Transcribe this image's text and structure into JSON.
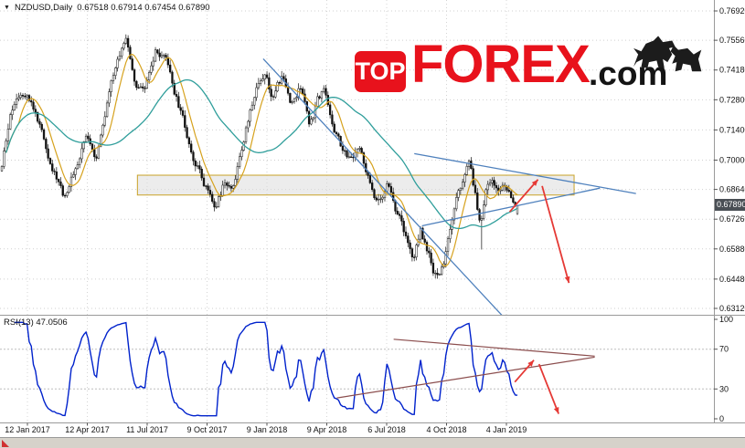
{
  "header": {
    "symbol_title": "NZDUSD,Daily",
    "ohlc_text": "0.67518 0.67914 0.67454 0.67890"
  },
  "logo": {
    "box_text": "TOP",
    "brand_text": "FOREX",
    "suffix_text": ".com",
    "brand_color": "#e8121c",
    "suffix_color": "#141414"
  },
  "price_scale": {
    "ticks": [
      "0.76920",
      "0.75560",
      "0.74180",
      "0.72800",
      "0.71400",
      "0.70000",
      "0.68640",
      "0.67260",
      "0.65880",
      "0.64480",
      "0.63120"
    ],
    "current_price_label": "0.67890"
  },
  "rsi_panel": {
    "label": "RSI(13) 47.0506",
    "scale_ticks": [
      "100",
      "70",
      "30",
      "0"
    ],
    "levels": [
      70,
      30
    ],
    "line_color": "#0022cc"
  },
  "time_scale": {
    "labels": [
      "12 Jan 2017",
      "12 Apr 2017",
      "11 Jul 2017",
      "9 Oct 2017",
      "9 Jan 2018",
      "9 Apr 2018",
      "6 Jul 2018",
      "4 Oct 2018",
      "4 Jan 2019"
    ]
  },
  "chart_data": {
    "type": "candlestick",
    "title": "NZDUSD Daily candlestick chart with two moving averages, RSI(13), support zone and forecast arrows",
    "price_range": [
      0.6312,
      0.7692
    ],
    "n_candles": 246,
    "last_ohlc": {
      "open": 0.67518,
      "high": 0.67914,
      "low": 0.67454,
      "close": 0.6789
    },
    "spike_low": {
      "t": 0.929,
      "price": 0.6585
    },
    "candle_colors": {
      "bull": "#ffffff",
      "bear": "#111111",
      "outline": "#111111"
    },
    "price_path": [
      [
        0.0,
        0.695
      ],
      [
        0.014,
        0.715
      ],
      [
        0.028,
        0.73
      ],
      [
        0.05,
        0.7355
      ],
      [
        0.082,
        0.71
      ],
      [
        0.103,
        0.695
      ],
      [
        0.121,
        0.684
      ],
      [
        0.147,
        0.7
      ],
      [
        0.165,
        0.712
      ],
      [
        0.183,
        0.704
      ],
      [
        0.2,
        0.723
      ],
      [
        0.223,
        0.744
      ],
      [
        0.241,
        0.7555
      ],
      [
        0.259,
        0.738
      ],
      [
        0.277,
        0.73
      ],
      [
        0.298,
        0.748
      ],
      [
        0.319,
        0.743
      ],
      [
        0.342,
        0.725
      ],
      [
        0.36,
        0.71
      ],
      [
        0.378,
        0.698
      ],
      [
        0.395,
        0.69
      ],
      [
        0.413,
        0.679
      ],
      [
        0.431,
        0.69
      ],
      [
        0.443,
        0.684
      ],
      [
        0.461,
        0.7
      ],
      [
        0.479,
        0.72
      ],
      [
        0.496,
        0.736
      ],
      [
        0.511,
        0.743
      ],
      [
        0.525,
        0.73
      ],
      [
        0.543,
        0.738
      ],
      [
        0.56,
        0.726
      ],
      [
        0.578,
        0.734
      ],
      [
        0.596,
        0.718
      ],
      [
        0.613,
        0.728
      ],
      [
        0.626,
        0.734
      ],
      [
        0.644,
        0.716
      ],
      [
        0.661,
        0.706
      ],
      [
        0.679,
        0.698
      ],
      [
        0.697,
        0.703
      ],
      [
        0.714,
        0.689
      ],
      [
        0.732,
        0.68
      ],
      [
        0.75,
        0.688
      ],
      [
        0.768,
        0.675
      ],
      [
        0.785,
        0.662
      ],
      [
        0.798,
        0.655
      ],
      [
        0.812,
        0.67
      ],
      [
        0.826,
        0.658
      ],
      [
        0.84,
        0.648
      ],
      [
        0.855,
        0.652
      ],
      [
        0.869,
        0.665
      ],
      [
        0.883,
        0.681
      ],
      [
        0.897,
        0.69
      ],
      [
        0.908,
        0.697
      ],
      [
        0.918,
        0.684
      ],
      [
        0.929,
        0.67
      ],
      [
        0.94,
        0.687
      ],
      [
        0.95,
        0.692
      ],
      [
        0.965,
        0.688
      ],
      [
        0.975,
        0.692
      ],
      [
        0.986,
        0.684
      ],
      [
        1.0,
        0.6789
      ]
    ],
    "series": [
      {
        "name": "ma-fast",
        "color": "#d6a21e"
      },
      {
        "name": "ma-slow",
        "color": "#2f9e9b"
      },
      {
        "name": "RSI(13)",
        "color": "#0022cc",
        "current": 47.0506
      }
    ],
    "annotations": {
      "zone": {
        "t": [
          0.263,
          1.11
        ],
        "price": [
          0.6838,
          0.693
        ],
        "fill": "#dcdcdc",
        "border": "#c9a227"
      },
      "trendlines": [
        {
          "name": "major-downtrend",
          "t": [
            0.507,
            0.97
          ],
          "price": [
            0.747,
            0.628
          ],
          "color": "#4f81bd"
        },
        {
          "name": "wedge-upper",
          "t": [
            0.8,
            1.23
          ],
          "price": [
            0.703,
            0.6845
          ],
          "color": "#4f81bd"
        },
        {
          "name": "wedge-lower",
          "t": [
            0.815,
            1.16
          ],
          "price": [
            0.6695,
            0.687
          ],
          "color": "#4f81bd"
        }
      ],
      "price_arrows": [
        {
          "name": "impulse-up",
          "t": [
            0.985,
            1.04
          ],
          "price": [
            0.676,
            0.691
          ],
          "color": "#e53935"
        },
        {
          "name": "impulse-down",
          "t": [
            1.048,
            1.1
          ],
          "price": [
            0.688,
            0.643
          ],
          "color": "#e53935"
        }
      ],
      "rsi_lines": [
        {
          "name": "rsi-wedge-upper",
          "t": [
            0.76,
            1.15
          ],
          "value": [
            80,
            63
          ],
          "color": "#8b4d4d"
        },
        {
          "name": "rsi-wedge-lower",
          "t": [
            0.65,
            1.15
          ],
          "value": [
            21,
            62
          ],
          "color": "#8b4d4d"
        }
      ],
      "rsi_arrows": [
        {
          "name": "rsi-up",
          "t": [
            0.995,
            1.032
          ],
          "value": [
            37,
            59
          ],
          "color": "#e53935"
        },
        {
          "name": "rsi-down",
          "t": [
            1.042,
            1.08
          ],
          "value": [
            55,
            5
          ],
          "color": "#e53935"
        }
      ]
    }
  }
}
